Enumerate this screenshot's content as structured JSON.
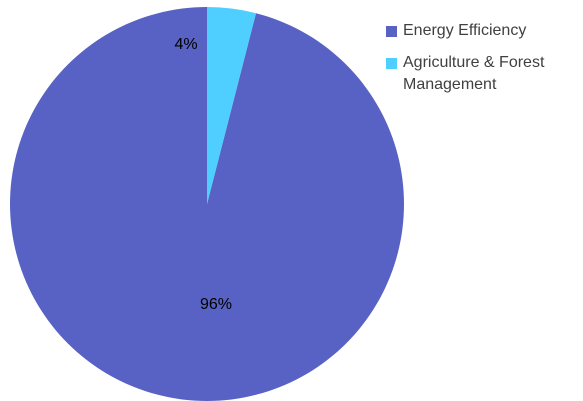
{
  "chart_data": {
    "type": "pie",
    "title": "",
    "slices": [
      {
        "label": "Energy Efficiency",
        "value": 96,
        "display": "96%",
        "color": "#5762C4"
      },
      {
        "label": "Agriculture & Forest Management",
        "value": 4,
        "display": "4%",
        "color": "#4FCFFF"
      }
    ],
    "start_angle_deg": 0,
    "direction": "clockwise",
    "legend_position": "right"
  }
}
